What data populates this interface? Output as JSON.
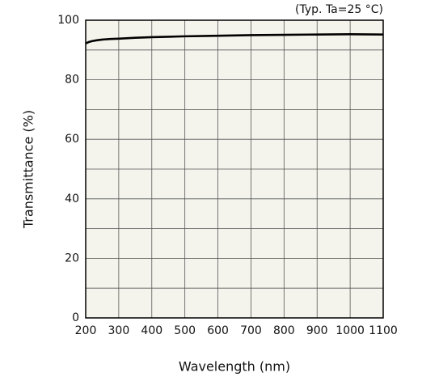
{
  "chart_data": {
    "type": "line",
    "annotation": "(Typ. Ta=25 °C)",
    "x_label": "Wavelength (nm)",
    "y_label": "Transmittance (%)",
    "xlim": [
      200,
      1100
    ],
    "ylim": [
      0,
      100
    ],
    "xticks": [
      200,
      300,
      400,
      500,
      600,
      700,
      800,
      900,
      1000,
      1100
    ],
    "yticks": [
      0,
      20,
      40,
      60,
      80,
      100
    ],
    "minor_yticks": [
      10,
      30,
      50,
      70,
      90
    ],
    "grid": true,
    "background": "#f5f4ec",
    "x": [
      200,
      210,
      220,
      235,
      250,
      275,
      300,
      350,
      400,
      450,
      500,
      600,
      700,
      800,
      900,
      1000,
      1100
    ],
    "series": [
      {
        "color": "#000000",
        "values": [
          92.2,
          92.7,
          93.0,
          93.3,
          93.5,
          93.7,
          93.8,
          94.1,
          94.3,
          94.45,
          94.6,
          94.8,
          95.0,
          95.1,
          95.2,
          95.3,
          95.2
        ]
      }
    ]
  }
}
